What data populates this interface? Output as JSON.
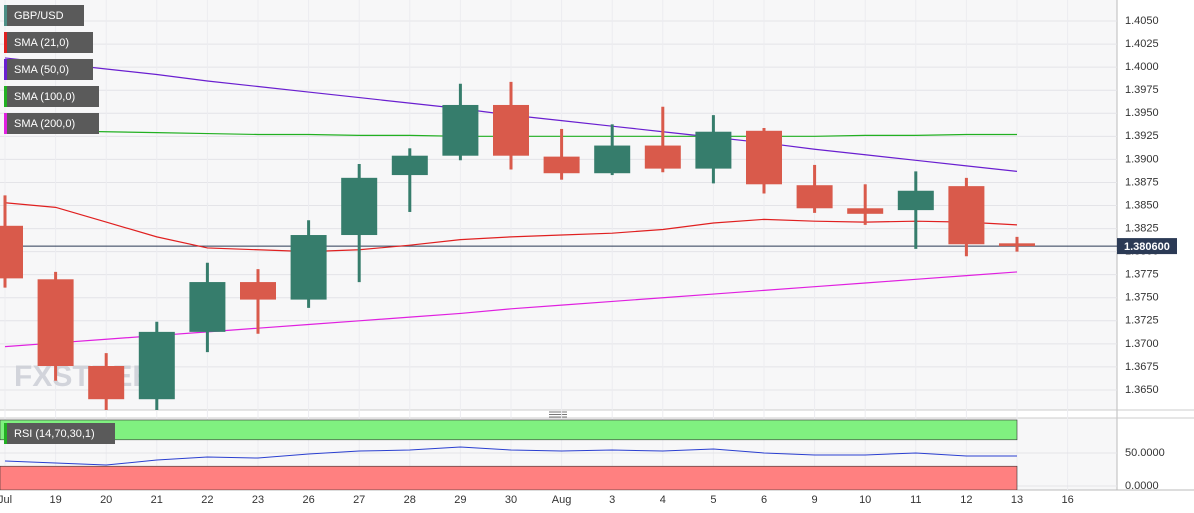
{
  "chart_data": [
    {
      "type": "candlestick",
      "symbol": "GBP/USD",
      "watermark": "FXSTREET",
      "categories": [
        "Jul",
        "19",
        "20",
        "21",
        "22",
        "23",
        "26",
        "27",
        "28",
        "29",
        "30",
        "Aug",
        "3",
        "4",
        "5",
        "6",
        "9",
        "10",
        "11",
        "12",
        "13",
        "16"
      ],
      "open": [
        1.3828,
        1.377,
        1.3676,
        1.364,
        1.3713,
        1.3767,
        1.3748,
        1.3818,
        1.3883,
        1.3904,
        1.3959,
        1.3903,
        1.3885,
        1.3915,
        1.389,
        1.3931,
        1.3872,
        1.3847,
        1.3845,
        1.3871,
        1.3809,
        null
      ],
      "high": [
        1.3861,
        1.3778,
        1.369,
        1.3724,
        1.3788,
        1.3781,
        1.3834,
        1.3895,
        1.3912,
        1.3982,
        1.3984,
        1.3933,
        1.3938,
        1.3957,
        1.3948,
        1.3934,
        1.3894,
        1.3873,
        1.3887,
        1.388,
        1.3816,
        null
      ],
      "low": [
        1.3761,
        1.366,
        1.362,
        1.362,
        1.3691,
        1.3711,
        1.3739,
        1.3767,
        1.3843,
        1.3899,
        1.3889,
        1.3878,
        1.3883,
        1.3886,
        1.3874,
        1.3863,
        1.3842,
        1.3829,
        1.3803,
        1.3795,
        1.38,
        null
      ],
      "close": [
        1.3771,
        1.3676,
        1.364,
        1.3713,
        1.3767,
        1.3748,
        1.3818,
        1.388,
        1.3904,
        1.3959,
        1.3904,
        1.3885,
        1.3915,
        1.389,
        1.393,
        1.3873,
        1.3847,
        1.3841,
        1.3866,
        1.3808,
        1.3806,
        null
      ],
      "up_color": "#367d6c",
      "down_color": "#d95a4b",
      "overlays": [
        {
          "name": "SMA (21,0)",
          "color": "#e02020",
          "values": [
            1.3853,
            1.3848,
            1.3832,
            1.3816,
            1.3804,
            1.3802,
            1.38,
            1.3802,
            1.3807,
            1.3813,
            1.3816,
            1.3818,
            1.382,
            1.3824,
            1.3831,
            1.3835,
            1.3833,
            1.3832,
            1.3833,
            1.3832,
            1.3829,
            null
          ]
        },
        {
          "name": "SMA (50,0)",
          "color": "#6a1fd0",
          "values": [
            1.401,
            1.4004,
            1.3998,
            1.3992,
            1.3985,
            1.3979,
            1.3973,
            1.3967,
            1.3961,
            1.3955,
            1.3948,
            1.3942,
            1.3936,
            1.393,
            1.3924,
            1.3918,
            1.3911,
            1.3905,
            1.3899,
            1.3893,
            1.3887,
            null
          ]
        },
        {
          "name": "SMA (100,0)",
          "color": "#22b022",
          "values": [
            1.3932,
            1.3931,
            1.393,
            1.3929,
            1.3928,
            1.3927,
            1.3927,
            1.3926,
            1.3926,
            1.3925,
            1.3925,
            1.3925,
            1.3925,
            1.3925,
            1.3925,
            1.3925,
            1.3925,
            1.3926,
            1.3926,
            1.3927,
            1.3927,
            null
          ]
        },
        {
          "name": "SMA (200,0)",
          "color": "#e020e0",
          "values": [
            1.3697,
            1.3701,
            1.3705,
            1.3709,
            1.3713,
            1.3717,
            1.3721,
            1.3725,
            1.3729,
            1.3733,
            1.3738,
            1.3742,
            1.3746,
            1.375,
            1.3754,
            1.3758,
            1.3762,
            1.3766,
            1.377,
            1.3774,
            1.3778,
            null
          ]
        }
      ],
      "last_price": {
        "value": 1.3806,
        "label": "1.380600"
      },
      "ylim": [
        1.36283,
        1.40728
      ],
      "yticks": [
        {
          "value": 1.365,
          "label": "1.3650"
        },
        {
          "value": 1.3675,
          "label": "1.3675"
        },
        {
          "value": 1.37,
          "label": "1.3700"
        },
        {
          "value": 1.3725,
          "label": "1.3725"
        },
        {
          "value": 1.375,
          "label": "1.3750"
        },
        {
          "value": 1.3775,
          "label": "1.3775"
        },
        {
          "value": 1.38,
          "label": "1.3800"
        },
        {
          "value": 1.3825,
          "label": "1.3825"
        },
        {
          "value": 1.385,
          "label": "1.3850"
        },
        {
          "value": 1.3875,
          "label": "1.3875"
        },
        {
          "value": 1.39,
          "label": "1.3900"
        },
        {
          "value": 1.3925,
          "label": "1.3925"
        },
        {
          "value": 1.395,
          "label": "1.3950"
        },
        {
          "value": 1.3975,
          "label": "1.3975"
        },
        {
          "value": 1.4,
          "label": "1.4000"
        },
        {
          "value": 1.4025,
          "label": "1.4025"
        },
        {
          "value": 1.405,
          "label": "1.4050"
        }
      ],
      "grid": true
    },
    {
      "type": "line",
      "title": "RSI (14,70,30,1)",
      "color": "#2a3fd0",
      "values": [
        37.9,
        34.8,
        31.8,
        39.4,
        43.9,
        42.4,
        48.5,
        53.0,
        54.5,
        59.1,
        54.5,
        53.0,
        54.5,
        53.0,
        56.0,
        50.0,
        47.0,
        47.0,
        50.0,
        45.5,
        45.5,
        null
      ],
      "bands": [
        {
          "from": 70,
          "to": 100,
          "color": "#80f080"
        },
        {
          "from": 30,
          "to": -6,
          "color": "#ff8080"
        }
      ],
      "ylim": [
        -6,
        103
      ],
      "yticks": [
        {
          "value": 0,
          "label": "0.0000"
        },
        {
          "value": 50,
          "label": "50.0000"
        }
      ],
      "grid": true
    }
  ]
}
